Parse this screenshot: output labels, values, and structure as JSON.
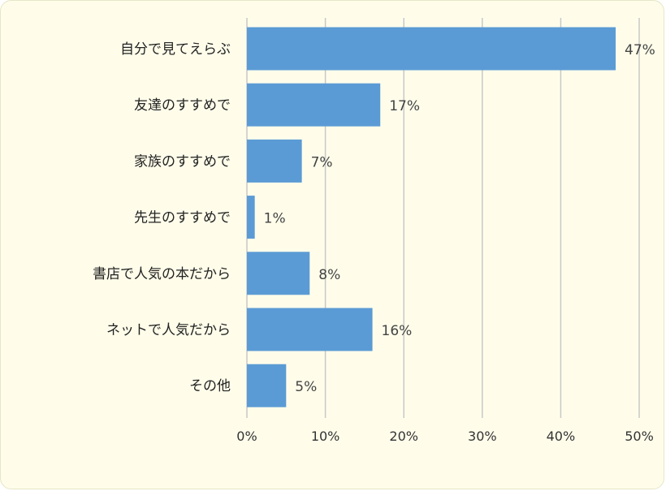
{
  "chart_data": {
    "type": "bar",
    "orientation": "horizontal",
    "categories": [
      "自分で見てえらぶ",
      "友達のすすめで",
      "家族のすすめで",
      "先生のすすめで",
      "書店で人気の本だから",
      "ネットで人気だから",
      "その他"
    ],
    "values": [
      47,
      17,
      7,
      1,
      8,
      16,
      5
    ],
    "data_labels": [
      "47%",
      "17%",
      "7%",
      "1%",
      "8%",
      "16%",
      "5%"
    ],
    "x_ticks": [
      "0%",
      "10%",
      "20%",
      "30%",
      "40%",
      "50%"
    ],
    "xlim": [
      0,
      50
    ],
    "title": "",
    "xlabel": "",
    "ylabel": "",
    "grid": "vertical",
    "legend": "none",
    "colors": {
      "bar": "#5b9bd5",
      "background": "#fffdea",
      "grid": "#c8c8c8"
    }
  }
}
